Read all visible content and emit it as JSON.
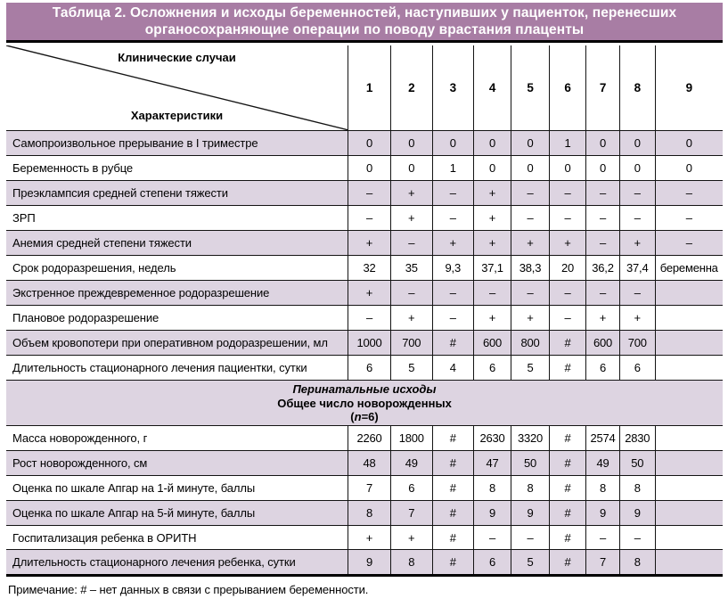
{
  "colors": {
    "title_bg": "#a87da4",
    "title_text": "#ffffff",
    "row_shade": "#ddd4e1",
    "border": "#141414",
    "thick_rule": "#000000"
  },
  "table": {
    "title_line1": "Таблица 2. Осложнения и исходы беременностей, наступивших у пациенток, перенесших",
    "title_line2": "органосохраняющие операции по поводу врастания плаценты",
    "corner": {
      "top_label": "Клинические случаи",
      "bottom_label": "Характеристики"
    },
    "case_numbers": [
      "1",
      "2",
      "3",
      "4",
      "5",
      "6",
      "7",
      "8",
      "9"
    ],
    "rows_group1": [
      {
        "label": "Самопроизвольное прерывание в I триместре",
        "values": [
          "0",
          "0",
          "0",
          "0",
          "0",
          "1",
          "0",
          "0",
          "0"
        ]
      },
      {
        "label": "Беременность в рубце",
        "values": [
          "0",
          "0",
          "1",
          "0",
          "0",
          "0",
          "0",
          "0",
          "0"
        ]
      },
      {
        "label": "Преэклампсия средней степени тяжести",
        "values": [
          "–",
          "+",
          "–",
          "+",
          "–",
          "–",
          "–",
          "–",
          "–"
        ]
      },
      {
        "label": "ЗРП",
        "values": [
          "–",
          "+",
          "–",
          "+",
          "–",
          "–",
          "–",
          "–",
          "–"
        ]
      },
      {
        "label": "Анемия средней степени тяжести",
        "values": [
          "+",
          "–",
          "+",
          "+",
          "+",
          "+",
          "–",
          "+",
          "–"
        ]
      },
      {
        "label": "Срок родоразрешения, недель",
        "values": [
          "32",
          "35",
          "9,3",
          "37,1",
          "38,3",
          "20",
          "36,2",
          "37,4",
          "беременна"
        ]
      },
      {
        "label": "Экстренное преждевременное родоразрешение",
        "values": [
          "+",
          "–",
          "–",
          "–",
          "–",
          "–",
          "–",
          "–",
          ""
        ]
      },
      {
        "label": "Плановое родоразрешение",
        "values": [
          "–",
          "+",
          "–",
          "+",
          "+",
          "–",
          "+",
          "+",
          ""
        ]
      },
      {
        "label": "Объем кровопотери при оперативном родоразрешении, мл",
        "values": [
          "1000",
          "700",
          "#",
          "600",
          "800",
          "#",
          "600",
          "700",
          ""
        ]
      },
      {
        "label": "Длительность стационарного лечения пациентки, сутки",
        "values": [
          "6",
          "5",
          "4",
          "6",
          "5",
          "#",
          "6",
          "6",
          ""
        ]
      }
    ],
    "section": {
      "line1": "Перинатальные исходы",
      "line2": "Общее число новорожденных",
      "line3_prefix": "(",
      "line3_n": "n",
      "line3_suffix": "=6)"
    },
    "rows_group2": [
      {
        "label": "Масса новорожденного, г",
        "values": [
          "2260",
          "1800",
          "#",
          "2630",
          "3320",
          "#",
          "2574",
          "2830",
          ""
        ]
      },
      {
        "label": "Рост новорожденного, см",
        "values": [
          "48",
          "49",
          "#",
          "47",
          "50",
          "#",
          "49",
          "50",
          ""
        ]
      },
      {
        "label": "Оценка по шкале Апгар на 1-й минуте, баллы",
        "values": [
          "7",
          "6",
          "#",
          "8",
          "8",
          "#",
          "8",
          "8",
          ""
        ]
      },
      {
        "label": "Оценка по шкале Апгар на 5-й минуте, баллы",
        "values": [
          "8",
          "7",
          "#",
          "9",
          "9",
          "#",
          "9",
          "9",
          ""
        ]
      },
      {
        "label": "Госпитализация ребенка в ОРИТН",
        "values": [
          "+",
          "+",
          "#",
          "–",
          "–",
          "#",
          "–",
          "–",
          ""
        ]
      },
      {
        "label": "Длительность стационарного лечения ребенка, сутки",
        "values": [
          "9",
          "8",
          "#",
          "6",
          "5",
          "#",
          "7",
          "8",
          ""
        ]
      }
    ],
    "footnote": "Примечание: # – нет данных в связи с прерыванием беременности."
  }
}
